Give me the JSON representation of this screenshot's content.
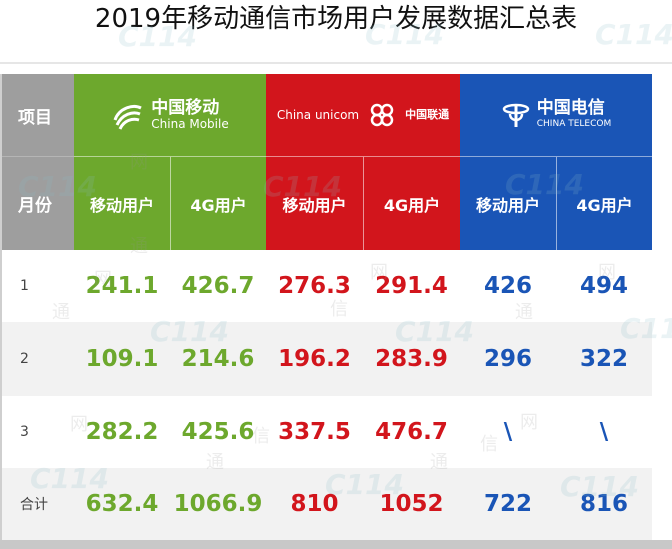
{
  "title": "2019年移动通信市场用户发展数据汇总表",
  "header": {
    "item_label": "项目",
    "month_label": "月份"
  },
  "carriers": [
    {
      "name_cn": "中国移动",
      "name_en": "China Mobile",
      "color": "#6da82d",
      "logo_icon": "china-mobile-logo-icon",
      "sub_headers": [
        "移动用户",
        "4G用户"
      ]
    },
    {
      "name_cn": "中国联通",
      "name_en": "China unicom",
      "color": "#d2151c",
      "logo_icon": "china-unicom-logo-icon",
      "sub_headers": [
        "移动用户",
        "4G用户"
      ]
    },
    {
      "name_cn": "中国电信",
      "name_en": "CHINA TELECOM",
      "color": "#1a55b6",
      "logo_icon": "china-telecom-logo-icon",
      "sub_headers": [
        "移动用户",
        "4G用户"
      ]
    }
  ],
  "rows": [
    {
      "month": "1",
      "values": [
        "241.1",
        "426.7",
        "276.3",
        "291.4",
        "426",
        "494"
      ]
    },
    {
      "month": "2",
      "values": [
        "109.1",
        "214.6",
        "196.2",
        "283.9",
        "296",
        "322"
      ]
    },
    {
      "month": "3",
      "values": [
        "282.2",
        "425.6",
        "337.5",
        "476.7",
        "\\",
        "\\"
      ]
    },
    {
      "month": "合计",
      "values": [
        "632.4",
        "1066.9",
        "810",
        "1052",
        "722",
        "816"
      ]
    }
  ],
  "watermark": {
    "logo_text": "C114",
    "chars": [
      "通",
      "信",
      "网"
    ]
  }
}
